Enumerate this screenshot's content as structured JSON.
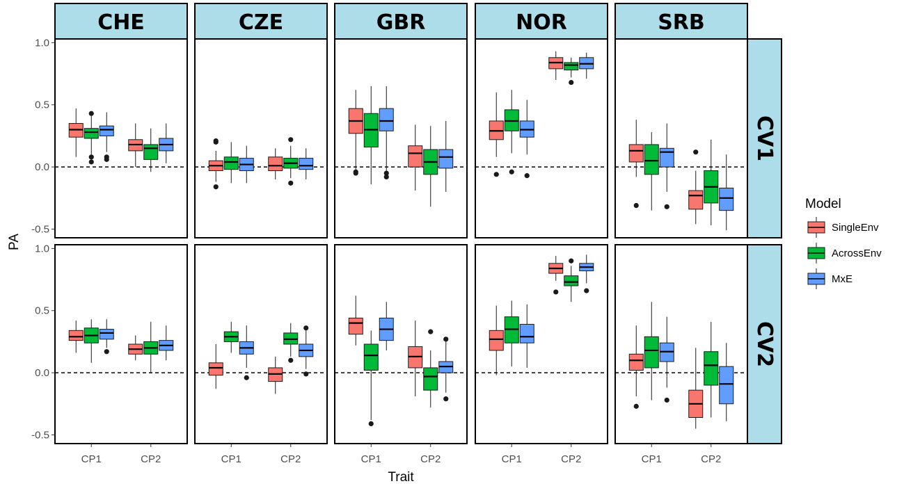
{
  "chart_data": {
    "type": "boxplot",
    "facet_columns": [
      "CHE",
      "CZE",
      "GBR",
      "NOR",
      "SRB"
    ],
    "facet_rows": [
      "CV1",
      "CV2"
    ],
    "categories": [
      "CP1",
      "CP2"
    ],
    "xlabel": "Trait",
    "ylabel": "PA",
    "ylim": [
      -0.57,
      1.03
    ],
    "yticks": [
      1.0,
      0.5,
      0.0,
      -0.5
    ],
    "ytick_labels": [
      "1.0",
      "0.5",
      "0.0",
      "-0.5"
    ],
    "reference_line": 0.0,
    "legend": {
      "title": "Model",
      "position": "right",
      "entries": [
        {
          "name": "SingleEnv",
          "color": "#F8766D"
        },
        {
          "name": "AcrossEnv",
          "color": "#00BA38"
        },
        {
          "name": "MxE",
          "color": "#619CFF"
        }
      ]
    },
    "strip_color": "#ADDDE9",
    "box_stats_order": [
      "whisker_low",
      "q1",
      "median",
      "q3",
      "whisker_high",
      "outliers"
    ],
    "data": {
      "CV1": {
        "CHE": {
          "CP1": {
            "SingleEnv": [
              0.08,
              0.24,
              0.3,
              0.35,
              0.47,
              []
            ],
            "AcrossEnv": [
              0.1,
              0.23,
              0.28,
              0.31,
              0.41,
              [
                0.43,
                0.08,
                0.04
              ]
            ],
            "MxE": [
              0.12,
              0.25,
              0.3,
              0.33,
              0.44,
              [
                0.08,
                0.06
              ]
            ]
          },
          "CP2": {
            "SingleEnv": [
              0.0,
              0.13,
              0.18,
              0.22,
              0.35,
              []
            ],
            "AcrossEnv": [
              -0.04,
              0.06,
              0.15,
              0.18,
              0.31,
              []
            ],
            "MxE": [
              0.03,
              0.13,
              0.18,
              0.23,
              0.35,
              []
            ]
          }
        },
        "CZE": {
          "CP1": {
            "SingleEnv": [
              -0.12,
              -0.03,
              0.01,
              0.05,
              0.13,
              [
                -0.16,
                0.2,
                0.21
              ]
            ],
            "AcrossEnv": [
              -0.13,
              -0.02,
              0.04,
              0.08,
              0.2,
              []
            ],
            "MxE": [
              -0.13,
              -0.03,
              0.02,
              0.07,
              0.17,
              []
            ]
          },
          "CP2": {
            "SingleEnv": [
              -0.1,
              -0.03,
              0.01,
              0.08,
              0.15,
              []
            ],
            "AcrossEnv": [
              -0.09,
              -0.01,
              0.03,
              0.07,
              0.17,
              [
                0.22,
                -0.13
              ]
            ],
            "MxE": [
              -0.1,
              -0.02,
              0.01,
              0.07,
              0.15,
              []
            ]
          }
        },
        "GBR": {
          "CP1": {
            "SingleEnv": [
              -0.02,
              0.27,
              0.37,
              0.47,
              0.62,
              [
                -0.04,
                -0.05
              ]
            ],
            "AcrossEnv": [
              -0.14,
              0.16,
              0.3,
              0.43,
              0.65,
              []
            ],
            "MxE": [
              -0.04,
              0.29,
              0.37,
              0.47,
              0.65,
              [
                -0.05,
                -0.08
              ]
            ]
          },
          "CP2": {
            "SingleEnv": [
              -0.19,
              0.0,
              0.11,
              0.17,
              0.34,
              []
            ],
            "AcrossEnv": [
              -0.32,
              -0.06,
              0.04,
              0.14,
              0.33,
              []
            ],
            "MxE": [
              -0.2,
              -0.01,
              0.08,
              0.14,
              0.37,
              []
            ]
          }
        },
        "NOR": {
          "CP1": {
            "SingleEnv": [
              0.08,
              0.22,
              0.29,
              0.37,
              0.6,
              [
                -0.06
              ]
            ],
            "AcrossEnv": [
              0.11,
              0.29,
              0.37,
              0.46,
              0.62,
              [
                -0.04
              ]
            ],
            "MxE": [
              0.1,
              0.24,
              0.3,
              0.37,
              0.54,
              [
                -0.07
              ]
            ]
          },
          "CP2": {
            "SingleEnv": [
              0.7,
              0.79,
              0.84,
              0.88,
              0.93,
              []
            ],
            "AcrossEnv": [
              0.72,
              0.78,
              0.82,
              0.84,
              0.88,
              [
                0.68
              ]
            ],
            "MxE": [
              0.71,
              0.79,
              0.83,
              0.88,
              0.92,
              []
            ]
          }
        },
        "SRB": {
          "CP1": {
            "SingleEnv": [
              -0.08,
              0.04,
              0.13,
              0.18,
              0.38,
              [
                -0.31
              ]
            ],
            "AcrossEnv": [
              -0.35,
              -0.06,
              0.05,
              0.18,
              0.28,
              []
            ],
            "MxE": [
              -0.2,
              0.0,
              0.12,
              0.15,
              0.35,
              [
                -0.32
              ]
            ]
          },
          "CP2": {
            "SingleEnv": [
              -0.46,
              -0.34,
              -0.23,
              -0.19,
              -0.03,
              [
                0.12
              ]
            ],
            "AcrossEnv": [
              -0.47,
              -0.29,
              -0.16,
              -0.03,
              0.22,
              []
            ],
            "MxE": [
              -0.51,
              -0.35,
              -0.25,
              -0.17,
              0.1,
              []
            ]
          }
        }
      },
      "CV2": {
        "CHE": {
          "CP1": {
            "SingleEnv": [
              0.16,
              0.26,
              0.29,
              0.34,
              0.42,
              []
            ],
            "AcrossEnv": [
              0.08,
              0.24,
              0.3,
              0.36,
              0.43,
              []
            ],
            "MxE": [
              0.2,
              0.27,
              0.32,
              0.35,
              0.43,
              [
                0.17
              ]
            ]
          },
          "CP2": {
            "SingleEnv": [
              0.1,
              0.15,
              0.19,
              0.23,
              0.3,
              []
            ],
            "AcrossEnv": [
              0.0,
              0.15,
              0.2,
              0.25,
              0.41,
              []
            ],
            "MxE": [
              0.1,
              0.18,
              0.22,
              0.26,
              0.38,
              []
            ]
          }
        },
        "CZE": {
          "CP1": {
            "SingleEnv": [
              -0.13,
              -0.02,
              0.04,
              0.08,
              0.23,
              []
            ],
            "AcrossEnv": [
              0.16,
              0.25,
              0.29,
              0.33,
              0.41,
              []
            ],
            "MxE": [
              0.04,
              0.15,
              0.2,
              0.25,
              0.38,
              [
                -0.04
              ]
            ]
          },
          "CP2": {
            "SingleEnv": [
              -0.17,
              -0.07,
              -0.01,
              0.04,
              0.13,
              []
            ],
            "AcrossEnv": [
              0.13,
              0.23,
              0.27,
              0.32,
              0.4,
              [
                0.1
              ]
            ],
            "MxE": [
              0.03,
              0.13,
              0.18,
              0.23,
              0.36,
              [
                -0.01,
                0.36
              ]
            ]
          }
        },
        "GBR": {
          "CP1": {
            "SingleEnv": [
              0.22,
              0.31,
              0.4,
              0.44,
              0.62,
              []
            ],
            "AcrossEnv": [
              -0.38,
              0.02,
              0.14,
              0.23,
              0.34,
              [
                -0.41
              ]
            ],
            "MxE": [
              0.18,
              0.26,
              0.35,
              0.44,
              0.57,
              []
            ]
          },
          "CP2": {
            "SingleEnv": [
              -0.19,
              0.04,
              0.13,
              0.21,
              0.42,
              []
            ],
            "AcrossEnv": [
              -0.28,
              -0.14,
              -0.03,
              0.04,
              0.18,
              [
                0.33
              ]
            ],
            "MxE": [
              -0.16,
              0.0,
              0.05,
              0.09,
              0.28,
              [
                0.27,
                -0.21
              ]
            ]
          }
        },
        "NOR": {
          "CP1": {
            "SingleEnv": [
              -0.02,
              0.18,
              0.27,
              0.34,
              0.54,
              []
            ],
            "AcrossEnv": [
              0.05,
              0.24,
              0.35,
              0.45,
              0.58,
              []
            ],
            "MxE": [
              0.04,
              0.24,
              0.29,
              0.39,
              0.55,
              []
            ]
          },
          "CP2": {
            "SingleEnv": [
              0.74,
              0.8,
              0.84,
              0.88,
              0.94,
              [
                0.65
              ]
            ],
            "AcrossEnv": [
              0.57,
              0.7,
              0.73,
              0.78,
              0.86,
              [
                0.9
              ]
            ],
            "MxE": [
              0.72,
              0.82,
              0.85,
              0.88,
              0.95,
              [
                0.66
              ]
            ]
          }
        },
        "SRB": {
          "CP1": {
            "SingleEnv": [
              -0.19,
              0.02,
              0.1,
              0.15,
              0.38,
              [
                -0.27
              ]
            ],
            "AcrossEnv": [
              -0.22,
              0.04,
              0.18,
              0.29,
              0.57,
              []
            ],
            "MxE": [
              -0.12,
              0.09,
              0.17,
              0.24,
              0.45,
              [
                -0.22
              ]
            ]
          },
          "CP2": {
            "SingleEnv": [
              -0.45,
              -0.36,
              -0.25,
              -0.14,
              0.2,
              []
            ],
            "AcrossEnv": [
              -0.36,
              -0.1,
              0.06,
              0.17,
              0.41,
              []
            ],
            "MxE": [
              -0.39,
              -0.25,
              -0.09,
              0.05,
              0.24,
              []
            ]
          }
        }
      }
    }
  }
}
